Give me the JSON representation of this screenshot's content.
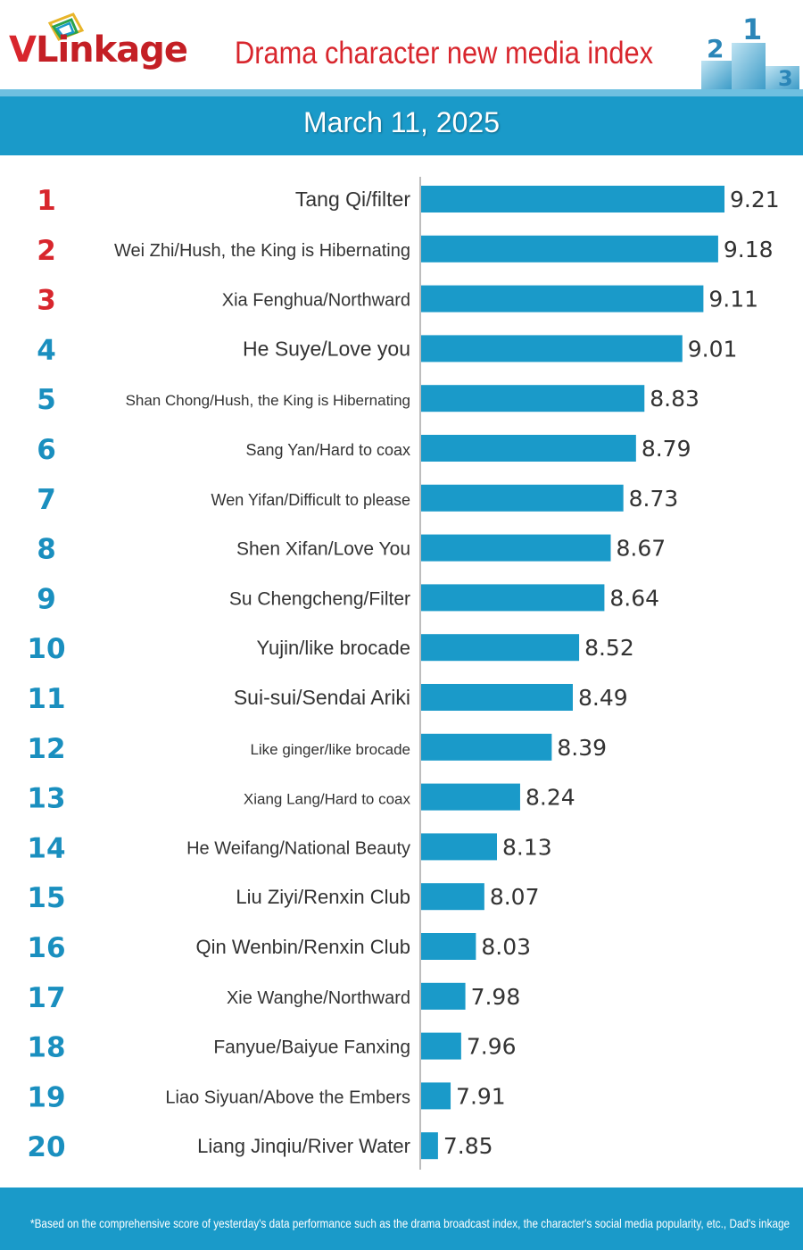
{
  "brand": {
    "logo_text_first": "V",
    "logo_text_rest": "Linkage"
  },
  "header": {
    "title": "Drama character new media index",
    "date": "March 11, 2025"
  },
  "footer": {
    "note": "*Based on the comprehensive score of yesterday's data performance such as the drama broadcast index, the character's social media popularity, etc., Dad's inkage"
  },
  "colors": {
    "bar": "#1a9ac9",
    "rank_top3": "#d8262d",
    "rank_rest": "#1a8fbf",
    "title": "#d8262d",
    "band": "#1a9ac9"
  },
  "chart_data": {
    "type": "bar",
    "orientation": "horizontal",
    "title": "Drama character new media index",
    "subtitle": "March 11, 2025",
    "ranks": [
      "1",
      "2",
      "3",
      "4",
      "5",
      "6",
      "7",
      "8",
      "9",
      "10",
      "11",
      "12",
      "13",
      "14",
      "15",
      "16",
      "17",
      "18",
      "19",
      "20"
    ],
    "categories": [
      "Tang Qi/filter",
      "Wei Zhi/Hush, the King is Hibernating",
      "Xia Fenghua/Northward",
      "He Suye/Love you",
      "Shan Chong/Hush, the King is Hibernating",
      "Sang Yan/Hard to coax",
      "Wen Yifan/Difficult to please",
      "Shen Xifan/Love You",
      "Su Chengcheng/Filter",
      "Yujin/like brocade",
      "Sui-sui/Sendai Ariki",
      "Like ginger/like brocade",
      "Xiang Lang/Hard to coax",
      "He Weifang/National Beauty",
      "Liu Ziyi/Renxin Club",
      "Qin Wenbin/Renxin Club",
      "Xie Wanghe/Northward",
      "Fanyue/Baiyue Fanxing",
      "Liao Siyuan/Above the Embers",
      "Liang Jinqiu/River Water"
    ],
    "values": [
      9.21,
      9.18,
      9.11,
      9.01,
      8.83,
      8.79,
      8.73,
      8.67,
      8.64,
      8.52,
      8.49,
      8.39,
      8.24,
      8.13,
      8.07,
      8.03,
      7.98,
      7.96,
      7.91,
      7.85
    ],
    "value_labels": [
      "9.21",
      "9.18",
      "9.11",
      "9.01",
      "8.83",
      "8.79",
      "8.73",
      "8.67",
      "8.64",
      "8.52",
      "8.49",
      "8.39",
      "8.24",
      "8.13",
      "8.07",
      "8.03",
      "7.98",
      "7.96",
      "7.91",
      "7.85"
    ],
    "xlim": [
      7.77,
      9.21
    ],
    "grid": false,
    "legend": "none"
  }
}
